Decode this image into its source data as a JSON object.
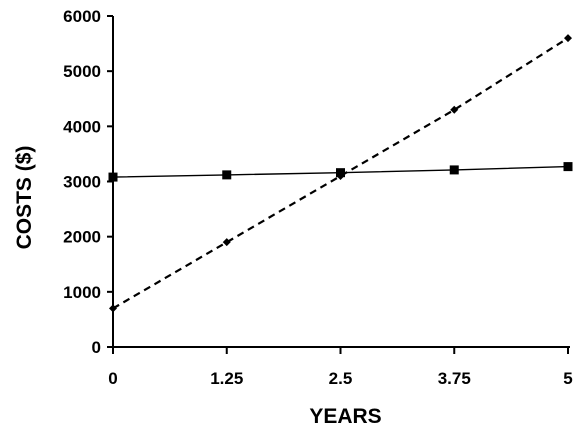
{
  "chart_data": {
    "type": "line",
    "title": "",
    "xlabel": "YEARS",
    "ylabel": "COSTS ($)",
    "x_ticks": [
      "0",
      "1.25",
      "2.5",
      "3.75",
      "5"
    ],
    "y_ticks": [
      "0",
      "1000",
      "2000",
      "3000",
      "4000",
      "5000",
      "6000"
    ],
    "xlim": [
      0,
      5
    ],
    "ylim": [
      0,
      6000
    ],
    "grid": false,
    "legend": "none",
    "series": [
      {
        "style": "solid",
        "marker": "square",
        "color": "#000000",
        "x": [
          0,
          1.25,
          2.5,
          3.75,
          5
        ],
        "y": [
          3080,
          3120,
          3160,
          3210,
          3270
        ]
      },
      {
        "style": "dashed",
        "marker": "diamond",
        "color": "#000000",
        "x": [
          0,
          1.25,
          2.5,
          3.75,
          5
        ],
        "y": [
          700,
          1900,
          3100,
          4300,
          5600
        ]
      }
    ]
  }
}
